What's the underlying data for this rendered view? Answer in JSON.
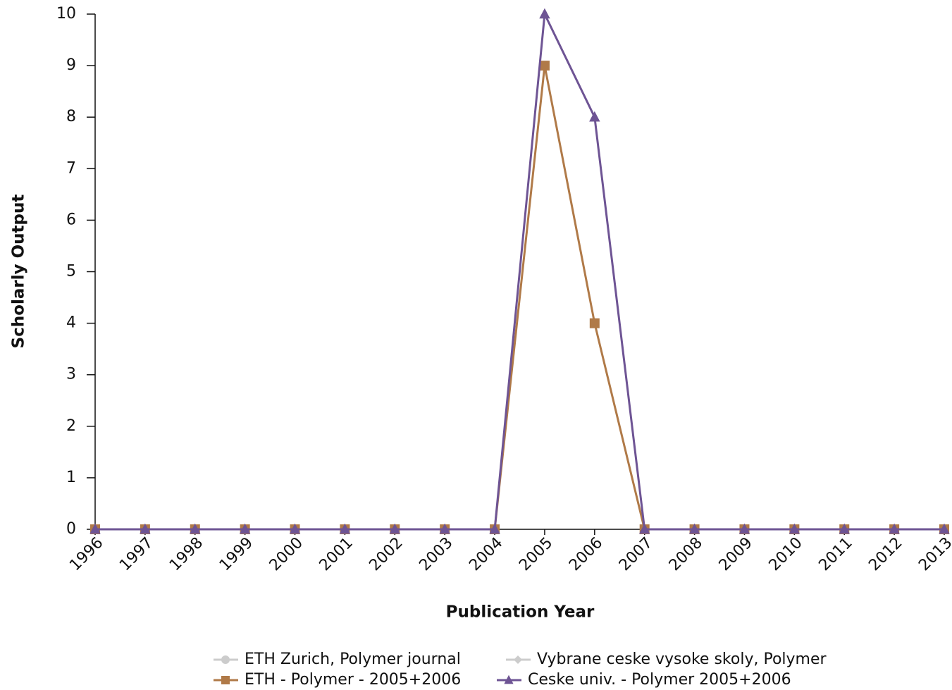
{
  "chart_data": {
    "type": "line",
    "xlabel": "Publication Year",
    "ylabel": "Scholarly Output",
    "x": [
      1996,
      1997,
      1998,
      1999,
      2000,
      2001,
      2002,
      2003,
      2004,
      2005,
      2006,
      2007,
      2008,
      2009,
      2010,
      2011,
      2012,
      2013
    ],
    "xlim": [
      1996,
      2013
    ],
    "xticks": [
      1996,
      1997,
      1998,
      1999,
      2000,
      2001,
      2002,
      2003,
      2004,
      2005,
      2006,
      2007,
      2008,
      2009,
      2010,
      2011,
      2012,
      2013
    ],
    "ylim": [
      0,
      10
    ],
    "yticks": [
      0,
      1,
      2,
      3,
      4,
      5,
      6,
      7,
      8,
      9,
      10
    ],
    "series": [
      {
        "name": "ETH Zurich, Polymer journal",
        "color": "#cccccc",
        "marker": "circle",
        "visible": false
      },
      {
        "name": "Vybrane ceske vysoke skoly, Polymer",
        "color": "#cccccc",
        "marker": "diamond",
        "visible": false
      },
      {
        "name": "ETH - Polymer - 2005+2006",
        "color": "#b07a48",
        "marker": "square",
        "visible": true,
        "values": [
          0,
          0,
          0,
          0,
          0,
          0,
          0,
          0,
          0,
          9,
          4,
          0,
          0,
          0,
          0,
          0,
          0,
          0
        ]
      },
      {
        "name": "Ceske univ. - Polymer 2005+2006",
        "color": "#6e5494",
        "marker": "triangle",
        "visible": true,
        "values": [
          0,
          0,
          0,
          0,
          0,
          0,
          0,
          0,
          0,
          10,
          8,
          0,
          0,
          0,
          0,
          0,
          0,
          0
        ]
      }
    ]
  }
}
